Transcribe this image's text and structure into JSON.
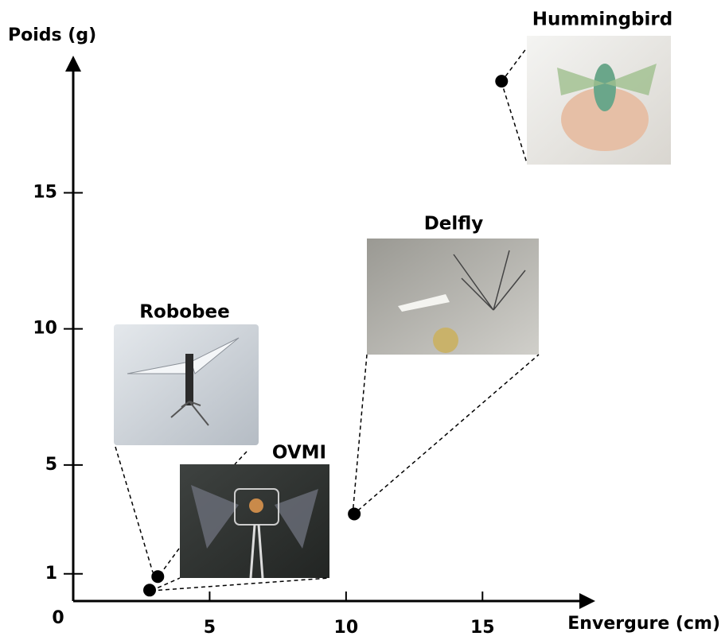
{
  "chart_data": {
    "type": "scatter",
    "x_label": "Envergure (cm)",
    "y_label": "Poids (g)",
    "origin_tick": 0,
    "xlim": [
      0,
      18.9
    ],
    "ylim": [
      0,
      19.6
    ],
    "xticks": [
      5,
      10,
      15
    ],
    "yticks": [
      1,
      5,
      10,
      15
    ],
    "color": "#000000",
    "points": [
      {
        "label": "Robobee",
        "x": 3.1,
        "y": 0.9
      },
      {
        "label": "OVMI",
        "x": 2.8,
        "y": 0.4
      },
      {
        "label": "Delfly",
        "x": 10.3,
        "y": 3.2
      },
      {
        "label": "Hummingbird",
        "x": 15.7,
        "y": 19.1
      }
    ]
  }
}
